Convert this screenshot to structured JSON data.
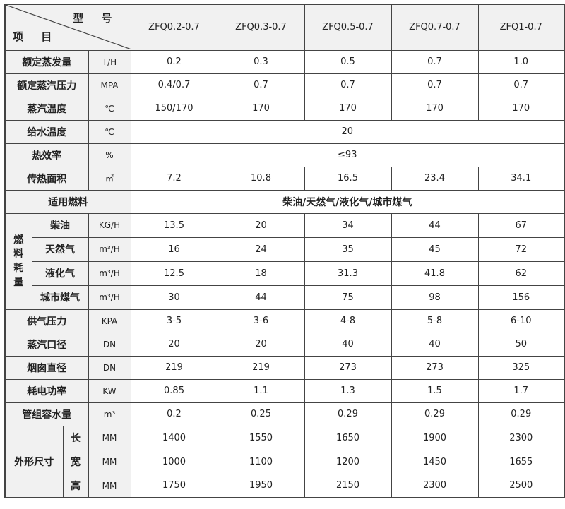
{
  "header": {
    "model_label": "型 号",
    "item_label": "项 目",
    "models": [
      "ZFQ0.2-0.7",
      "ZFQ0.3-0.7",
      "ZFQ0.5-0.7",
      "ZFQ0.7-0.7",
      "ZFQ1-0.7"
    ]
  },
  "rows_top": [
    {
      "label": "额定蒸发量",
      "unit": "T/H",
      "values": [
        "0.2",
        "0.3",
        "0.5",
        "0.7",
        "1.0"
      ]
    },
    {
      "label": "额定蒸汽压力",
      "unit": "MPA",
      "values": [
        "0.4/0.7",
        "0.7",
        "0.7",
        "0.7",
        "0.7"
      ]
    },
    {
      "label": "蒸汽温度",
      "unit": "℃",
      "values": [
        "150/170",
        "170",
        "170",
        "170",
        "170"
      ]
    }
  ],
  "feed_water": {
    "label": "给水温度",
    "unit": "℃",
    "value": "20"
  },
  "efficiency": {
    "label": "热效率",
    "unit": "%",
    "value": "≤93"
  },
  "heat_area": {
    "label": "传热面积",
    "unit": "㎡",
    "values": [
      "7.2",
      "10.8",
      "16.5",
      "23.4",
      "34.1"
    ]
  },
  "fuel": {
    "label": "适用燃料",
    "value": "柴油/天然气/液化气/城市煤气"
  },
  "consumption": {
    "group_label": "燃料耗量",
    "rows": [
      {
        "label": "柴油",
        "unit": "KG/H",
        "values": [
          "13.5",
          "20",
          "34",
          "44",
          "67"
        ]
      },
      {
        "label": "天然气",
        "unit": "m³/H",
        "values": [
          "16",
          "24",
          "35",
          "45",
          "72"
        ]
      },
      {
        "label": "液化气",
        "unit": "m³/H",
        "values": [
          "12.5",
          "18",
          "31.3",
          "41.8",
          "62"
        ]
      },
      {
        "label": "城市煤气",
        "unit": "m³/H",
        "values": [
          "30",
          "44",
          "75",
          "98",
          "156"
        ]
      }
    ]
  },
  "rows_mid": [
    {
      "label": "供气压力",
      "unit": "KPA",
      "values": [
        "3-5",
        "3-6",
        "4-8",
        "5-8",
        "6-10"
      ]
    },
    {
      "label": "蒸汽口径",
      "unit": "DN",
      "values": [
        "20",
        "20",
        "40",
        "40",
        "50"
      ]
    },
    {
      "label": "烟囱直径",
      "unit": "DN",
      "values": [
        "219",
        "219",
        "273",
        "273",
        "325"
      ]
    },
    {
      "label": "耗电功率",
      "unit": "KW",
      "values": [
        "0.85",
        "1.1",
        "1.3",
        "1.5",
        "1.7"
      ]
    },
    {
      "label": "管组容水量",
      "unit": "m³",
      "values": [
        "0.2",
        "0.25",
        "0.29",
        "0.29",
        "0.29"
      ]
    }
  ],
  "dimensions": {
    "group_label": "外形尺寸",
    "rows": [
      {
        "label": "长",
        "unit": "MM",
        "values": [
          "1400",
          "1550",
          "1650",
          "1900",
          "2300"
        ]
      },
      {
        "label": "宽",
        "unit": "MM",
        "values": [
          "1000",
          "1100",
          "1200",
          "1450",
          "1655"
        ]
      },
      {
        "label": "高",
        "unit": "MM",
        "values": [
          "1750",
          "1950",
          "2150",
          "2300",
          "2500"
        ]
      }
    ]
  }
}
